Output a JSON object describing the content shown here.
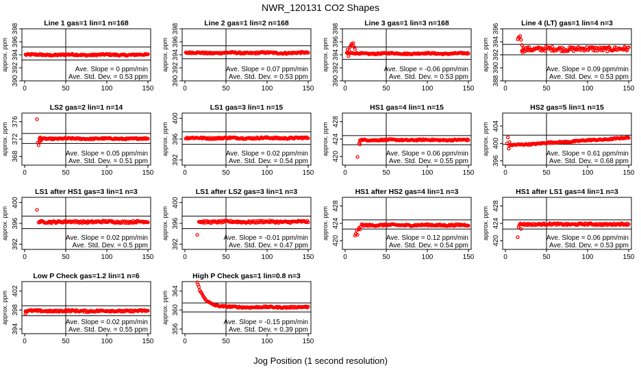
{
  "page": {
    "title": "NWR_120131   CO2 Shapes",
    "xlabel": "Jog Position (1 second resolution)"
  },
  "colors": {
    "points": "#ff0000",
    "axes": "#000000"
  },
  "chart_data": [
    {
      "type": "scatter",
      "title": "Line 1 gas=1 lin=1 n=168",
      "ylabel": "approx. ppm",
      "xlim": [
        0,
        150
      ],
      "ylim": [
        390,
        398
      ],
      "yticks": [
        390,
        392,
        394,
        396,
        398
      ],
      "xticks": [
        0,
        50,
        100,
        150
      ],
      "hlines": [
        395.2,
        393.2
      ],
      "vline": 50,
      "base": 394.0,
      "noise": 0.12,
      "start": 1,
      "end": 150,
      "spikes": [],
      "slope_label": "Ave. Slope = 0  ppm/min",
      "sd_label": "Ave. Std. Dev. = 0.53  ppm"
    },
    {
      "type": "scatter",
      "title": "Line 2 gas=1 lin=2 n=168",
      "ylabel": "approx. ppm",
      "xlim": [
        0,
        150
      ],
      "ylim": [
        390,
        398
      ],
      "yticks": [
        390,
        392,
        394,
        396,
        398
      ],
      "xticks": [
        0,
        50,
        100,
        150
      ],
      "hlines": [
        395.4,
        393.4
      ],
      "vline": 50,
      "base": 394.3,
      "noise": 0.12,
      "start": 1,
      "end": 150,
      "spikes": [],
      "slope_label": "Ave. Slope = 0.07  ppm/min",
      "sd_label": "Ave. Std. Dev. = 0.53  ppm"
    },
    {
      "type": "scatter",
      "title": "Line 3 gas=1 lin=3 n=168",
      "ylabel": "approx. ppm",
      "xlim": [
        0,
        150
      ],
      "ylim": [
        390,
        398
      ],
      "yticks": [
        390,
        392,
        394,
        396,
        398
      ],
      "xticks": [
        0,
        50,
        100,
        150
      ],
      "hlines": [
        395.2,
        393.3
      ],
      "vline": 50,
      "base": 394.2,
      "noise": 0.1,
      "start": 2,
      "end": 150,
      "spikes": [
        [
          3,
          394.8
        ],
        [
          4,
          393.8
        ],
        [
          5,
          394.6
        ],
        [
          6,
          395.2
        ],
        [
          7,
          395.5
        ],
        [
          8,
          395.7
        ],
        [
          9,
          395.4
        ],
        [
          10,
          395.8
        ],
        [
          11,
          395.2
        ],
        [
          12,
          394.9
        ]
      ],
      "slope_label": "Ave. Slope = -0.06  ppm/min",
      "sd_label": "Ave. Std. Dev. = 0.53  ppm"
    },
    {
      "type": "scatter",
      "title": "Line 4 (LT) gas=1 lin=4 n=3",
      "ylabel": "approx. ppm",
      "xlim": [
        0,
        150
      ],
      "ylim": [
        388,
        396
      ],
      "yticks": [
        388,
        390,
        392,
        394,
        396
      ],
      "xticks": [
        0,
        50,
        100,
        150
      ],
      "hlines": [
        393.6,
        392.0
      ],
      "vline": 50,
      "base": 392.9,
      "noise": 0.35,
      "start": 20,
      "end": 150,
      "spikes": [
        [
          15,
          394.4
        ],
        [
          16,
          394.7
        ],
        [
          17,
          394.6
        ],
        [
          18,
          394.9
        ],
        [
          19,
          394.3
        ],
        [
          20,
          393.5
        ],
        [
          21,
          392.4
        ],
        [
          22,
          392.9
        ]
      ],
      "slope_label": "Ave. Slope = 0.09  ppm/min",
      "sd_label": "Ave. Std. Dev. = 0.53  ppm"
    },
    {
      "type": "scatter",
      "title": "LS2 gas=2 lin=1 n=14",
      "ylabel": "approx. ppm",
      "xlim": [
        0,
        150
      ],
      "ylim": [
        366,
        378
      ],
      "yticks": [
        368,
        372,
        376
      ],
      "xticks": [
        0,
        50,
        100,
        150
      ],
      "hlines": [
        373.3,
        371.0
      ],
      "vline": 50,
      "base": 372.1,
      "noise": 0.15,
      "start": 18,
      "end": 150,
      "spikes": [
        [
          15,
          376.6
        ],
        [
          16,
          371.2
        ],
        [
          17,
          370.6
        ],
        [
          18,
          371.4
        ],
        [
          19,
          372.4
        ],
        [
          20,
          371.6
        ]
      ],
      "slope_label": "Ave. Slope = 0.05  ppm/min",
      "sd_label": "Ave. Std. Dev. = 0.51  ppm"
    },
    {
      "type": "scatter",
      "title": "LS1 gas=3 lin=1 n=15",
      "ylabel": "approx. ppm",
      "xlim": [
        0,
        150
      ],
      "ylim": [
        391,
        401
      ],
      "yticks": [
        392,
        396,
        400
      ],
      "xticks": [
        0,
        50,
        100,
        150
      ],
      "hlines": [
        397.4,
        395.0
      ],
      "vline": 50,
      "base": 396.2,
      "noise": 0.15,
      "start": 1,
      "end": 150,
      "spikes": [],
      "slope_label": "Ave. Slope = 0.02  ppm/min",
      "sd_label": "Ave. Std. Dev. = 0.54  ppm"
    },
    {
      "type": "scatter",
      "title": "HS1 gas=4 lin=1 n=15",
      "ylabel": "approx. ppm",
      "xlim": [
        0,
        150
      ],
      "ylim": [
        418,
        430
      ],
      "yticks": [
        420,
        424,
        428
      ],
      "xticks": [
        0,
        50,
        100,
        150
      ],
      "hlines": [
        424.8,
        422.7
      ],
      "vline": 50,
      "base": 423.8,
      "noise": 0.15,
      "start": 18,
      "end": 150,
      "spikes": [
        [
          15,
          419.9
        ],
        [
          17,
          423.0
        ],
        [
          18,
          422.8
        ]
      ],
      "slope_label": "Ave. Slope = 0.06  ppm/min",
      "sd_label": "Ave. Std. Dev. = 0.55  ppm"
    },
    {
      "type": "scatter",
      "title": "HS2 gas=5 lin=1 n=15",
      "ylabel": "approx. ppm",
      "xlim": [
        0,
        150
      ],
      "ylim": [
        395,
        407
      ],
      "yticks": [
        396,
        400,
        404
      ],
      "xticks": [
        0,
        50,
        100,
        150
      ],
      "hlines": [
        401.9,
        399.8
      ],
      "vline": 50,
      "base": 400.4,
      "noise": 0.15,
      "start": 5,
      "end": 150,
      "slope": 0.012,
      "spikes": [
        [
          2,
          400.0
        ],
        [
          3,
          401.4
        ],
        [
          4,
          398.8
        ],
        [
          5,
          400.3
        ]
      ],
      "slope_label": "Ave. Slope = 0.61  ppm/min",
      "sd_label": "Ave. Std. Dev. = 0.68  ppm"
    },
    {
      "type": "scatter",
      "title": "LS1 after HS1 gas=3 lin=1 n=3",
      "ylabel": "approx. ppm",
      "xlim": [
        0,
        150
      ],
      "ylim": [
        391,
        401
      ],
      "yticks": [
        392,
        396,
        400
      ],
      "xticks": [
        0,
        50,
        100,
        150
      ],
      "hlines": [
        397.4,
        395.0
      ],
      "vline": 50,
      "base": 396.3,
      "noise": 0.2,
      "start": 17,
      "end": 150,
      "spikes": [
        [
          15,
          398.6
        ]
      ],
      "slope_label": "Ave. Slope = 0.02  ppm/min",
      "sd_label": "Ave. Std. Dev. = 0.5  ppm"
    },
    {
      "type": "scatter",
      "title": "LS1 after LS2 gas=3 lin=1 n=3",
      "ylabel": "approx. ppm",
      "xlim": [
        0,
        150
      ],
      "ylim": [
        391,
        401
      ],
      "yticks": [
        392,
        396,
        400
      ],
      "xticks": [
        0,
        50,
        100,
        150
      ],
      "hlines": [
        397.4,
        395.0
      ],
      "vline": 50,
      "base": 396.3,
      "noise": 0.2,
      "start": 17,
      "end": 150,
      "spikes": [
        [
          15,
          393.8
        ]
      ],
      "slope_label": "Ave. Slope = -0.01  ppm/min",
      "sd_label": "Ave. Std. Dev. = 0.47  ppm"
    },
    {
      "type": "scatter",
      "title": "HS1 after HS2 gas=4 lin=1 n=3",
      "ylabel": "approx. ppm",
      "xlim": [
        0,
        150
      ],
      "ylim": [
        418,
        430
      ],
      "yticks": [
        420,
        424,
        428
      ],
      "xticks": [
        0,
        50,
        100,
        150
      ],
      "hlines": [
        424.8,
        422.7
      ],
      "vline": 50,
      "base": 423.6,
      "noise": 0.2,
      "start": 20,
      "end": 150,
      "spikes": [
        [
          12,
          421.2
        ],
        [
          13,
          421.6
        ],
        [
          14,
          422.4
        ],
        [
          15,
          421.4
        ],
        [
          16,
          422.6
        ],
        [
          17,
          423.0
        ],
        [
          18,
          422.6
        ],
        [
          19,
          423.2
        ]
      ],
      "slope_label": "Ave. Slope = 0.12  ppm/min",
      "sd_label": "Ave. Std. Dev. = 0.54  ppm"
    },
    {
      "type": "scatter",
      "title": "HS1 after LS1 gas=4 lin=1 n=3",
      "ylabel": "approx. ppm",
      "xlim": [
        0,
        150
      ],
      "ylim": [
        418,
        430
      ],
      "yticks": [
        420,
        424,
        428
      ],
      "xticks": [
        0,
        50,
        100,
        150
      ],
      "hlines": [
        424.8,
        422.7
      ],
      "vline": 50,
      "base": 423.8,
      "noise": 0.2,
      "start": 18,
      "end": 150,
      "spikes": [
        [
          15,
          420.8
        ],
        [
          16,
          423.2
        ],
        [
          17,
          423.6
        ],
        [
          19,
          422.7
        ]
      ],
      "slope_label": "Ave. Slope = 0.06  ppm/min",
      "sd_label": "Ave. Std. Dev. = 0.53  ppm"
    },
    {
      "type": "scatter",
      "title": "Low P Check gas=1.2 lin=1 n=6",
      "ylabel": "approx. ppm",
      "xlim": [
        0,
        150
      ],
      "ylim": [
        393,
        404
      ],
      "yticks": [
        394,
        398,
        402
      ],
      "xticks": [
        0,
        50,
        100,
        150
      ],
      "hlines": [
        398.9,
        396.8
      ],
      "vline": 50,
      "base": 397.8,
      "noise": 0.18,
      "start": 1,
      "end": 150,
      "spikes": [
        [
          1,
          397.2
        ],
        [
          2,
          397.6
        ]
      ],
      "slope_label": "Ave. Slope = 0.02  ppm/min",
      "sd_label": "Ave. Std. Dev. = 0.55  ppm"
    },
    {
      "type": "scatter",
      "title": "High P Check gas=1 lin=0.8 n=3",
      "ylabel": "approx. ppm",
      "xlim": [
        0,
        150
      ],
      "ylim": [
        355,
        366
      ],
      "yticks": [
        356,
        360,
        364
      ],
      "xticks": [
        0,
        50,
        100,
        150
      ],
      "hlines": [
        361.5,
        359.6
      ],
      "vline": 50,
      "base": 360.6,
      "noise": 0.15,
      "start": 15,
      "end": 150,
      "decay": {
        "amp": 5.2,
        "tau": 9
      },
      "spikes": [],
      "slope_label": "Ave. Slope = -0.15  ppm/min",
      "sd_label": "Ave. Std. Dev. = 0.39  ppm"
    }
  ]
}
